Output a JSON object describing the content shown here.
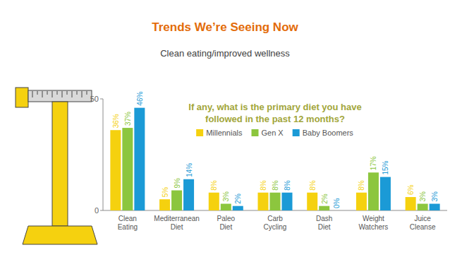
{
  "slide": {
    "title": "Trends We’re Seeing Now",
    "subtitle": "Clean eating/improved wellness"
  },
  "chart_data": {
    "type": "bar",
    "title": "If any, what is the primary diet you have followed in the past 12 months?",
    "categories": [
      "Clean Eating",
      "Mediterranean Diet",
      "Paleo Diet",
      "Carb Cycling",
      "Dash Diet",
      "Weight Watchers",
      "Juice Cleanse"
    ],
    "series": [
      {
        "name": "Millennials",
        "color": "#f5d10f",
        "values": [
          36,
          5,
          8,
          8,
          8,
          8,
          6
        ],
        "value_labels": [
          "36%",
          "5%",
          "8%",
          "8%",
          "8%",
          "8%",
          "6%"
        ]
      },
      {
        "name": "Gen X",
        "color": "#8cc63e",
        "values": [
          37,
          9,
          3,
          8,
          2,
          17,
          3
        ],
        "value_labels": [
          "37%",
          "9%",
          "3%",
          "8%",
          "2%",
          "17%",
          "3%"
        ]
      },
      {
        "name": "Baby Boomers",
        "color": "#1b9ad6",
        "values": [
          46,
          14,
          2,
          8,
          0,
          15,
          3
        ],
        "value_labels": [
          "46%",
          "14%",
          "2%",
          "8%",
          "0%",
          "15%",
          "3%"
        ]
      }
    ],
    "ylim": [
      0,
      50
    ],
    "yticks": [
      0,
      50
    ],
    "grid": false,
    "legend": "top",
    "data_labels": true
  }
}
